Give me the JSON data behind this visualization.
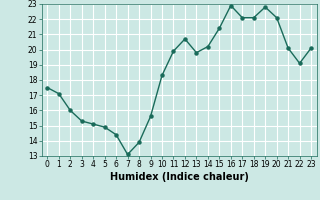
{
  "x": [
    0,
    1,
    2,
    3,
    4,
    5,
    6,
    7,
    8,
    9,
    10,
    11,
    12,
    13,
    14,
    15,
    16,
    17,
    18,
    19,
    20,
    21,
    22,
    23
  ],
  "y": [
    17.5,
    17.1,
    16.0,
    15.3,
    15.1,
    14.9,
    14.4,
    13.1,
    13.9,
    15.6,
    18.3,
    19.9,
    20.7,
    19.8,
    20.2,
    21.4,
    22.9,
    22.1,
    22.1,
    22.8,
    22.1,
    20.1,
    19.1,
    20.1
  ],
  "line_color": "#1a6b5a",
  "marker": "o",
  "marker_size": 2.2,
  "bg_color": "#cce8e4",
  "grid_color": "#ffffff",
  "xlabel": "Humidex (Indice chaleur)",
  "ylim": [
    13,
    23
  ],
  "xlim": [
    -0.5,
    23.5
  ],
  "yticks": [
    13,
    14,
    15,
    16,
    17,
    18,
    19,
    20,
    21,
    22,
    23
  ],
  "xticks": [
    0,
    1,
    2,
    3,
    4,
    5,
    6,
    7,
    8,
    9,
    10,
    11,
    12,
    13,
    14,
    15,
    16,
    17,
    18,
    19,
    20,
    21,
    22,
    23
  ],
  "tick_label_fontsize": 5.5,
  "xlabel_fontsize": 7.0,
  "line_width": 1.0
}
